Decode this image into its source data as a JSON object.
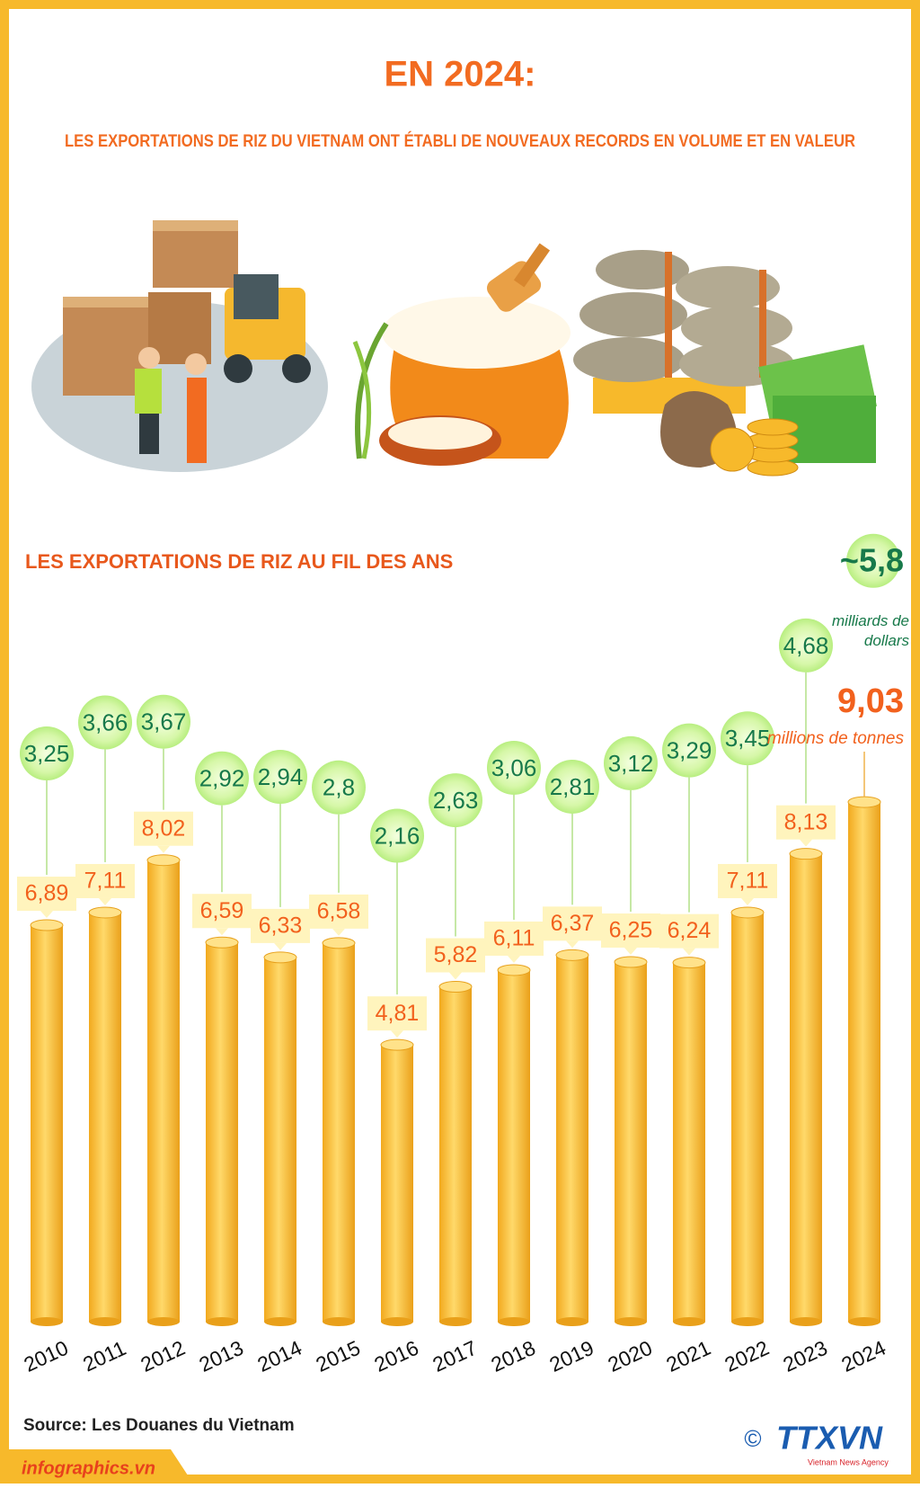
{
  "header": {
    "title": "EN 2024:",
    "subtitle": "LES EXPORTATIONS DE RIZ DU VIETNAM ONT ÉTABLI DE NOUVEAUX RECORDS EN VOLUME ET EN VALEUR"
  },
  "chart_data": {
    "type": "bar",
    "title": "LES EXPORTATIONS DE RIZ AU FIL DES ANS",
    "categories": [
      "2010",
      "2011",
      "2012",
      "2013",
      "2014",
      "2015",
      "2016",
      "2017",
      "2018",
      "2019",
      "2020",
      "2021",
      "2022",
      "2023",
      "2024"
    ],
    "series": [
      {
        "name": "millions de tonnes",
        "color": "#f5b82e",
        "label_color": "#f2611d",
        "values": [
          6.89,
          7.11,
          8.02,
          6.59,
          6.33,
          6.58,
          4.81,
          5.82,
          6.11,
          6.37,
          6.25,
          6.24,
          7.11,
          8.13,
          9.03
        ],
        "value_labels": [
          "6,89",
          "7,11",
          "8,02",
          "6,59",
          "6,33",
          "6,58",
          "4,81",
          "5,82",
          "6,11",
          "6,37",
          "6,25",
          "6,24",
          "7,11",
          "8,13",
          "9,03"
        ]
      },
      {
        "name": "milliards de dollars",
        "color": "#b8ee80",
        "label_color": "#17794a",
        "values": [
          3.25,
          3.66,
          3.67,
          2.92,
          2.94,
          2.8,
          2.16,
          2.63,
          3.06,
          2.81,
          3.12,
          3.29,
          3.45,
          4.68,
          5.8
        ],
        "value_labels": [
          "3,25",
          "3,66",
          "3,67",
          "2,92",
          "2,94",
          "2,8",
          "2,16",
          "2,63",
          "3,06",
          "2,81",
          "3,12",
          "3,29",
          "3,45",
          "4,68",
          "~5,8"
        ]
      }
    ],
    "source": "Source: Les Douanes du Vietnam"
  },
  "footer": {
    "site": "infographics.vn",
    "copyright": "©",
    "logo": "TTXVN",
    "agency": "Vietnam News Agency"
  }
}
